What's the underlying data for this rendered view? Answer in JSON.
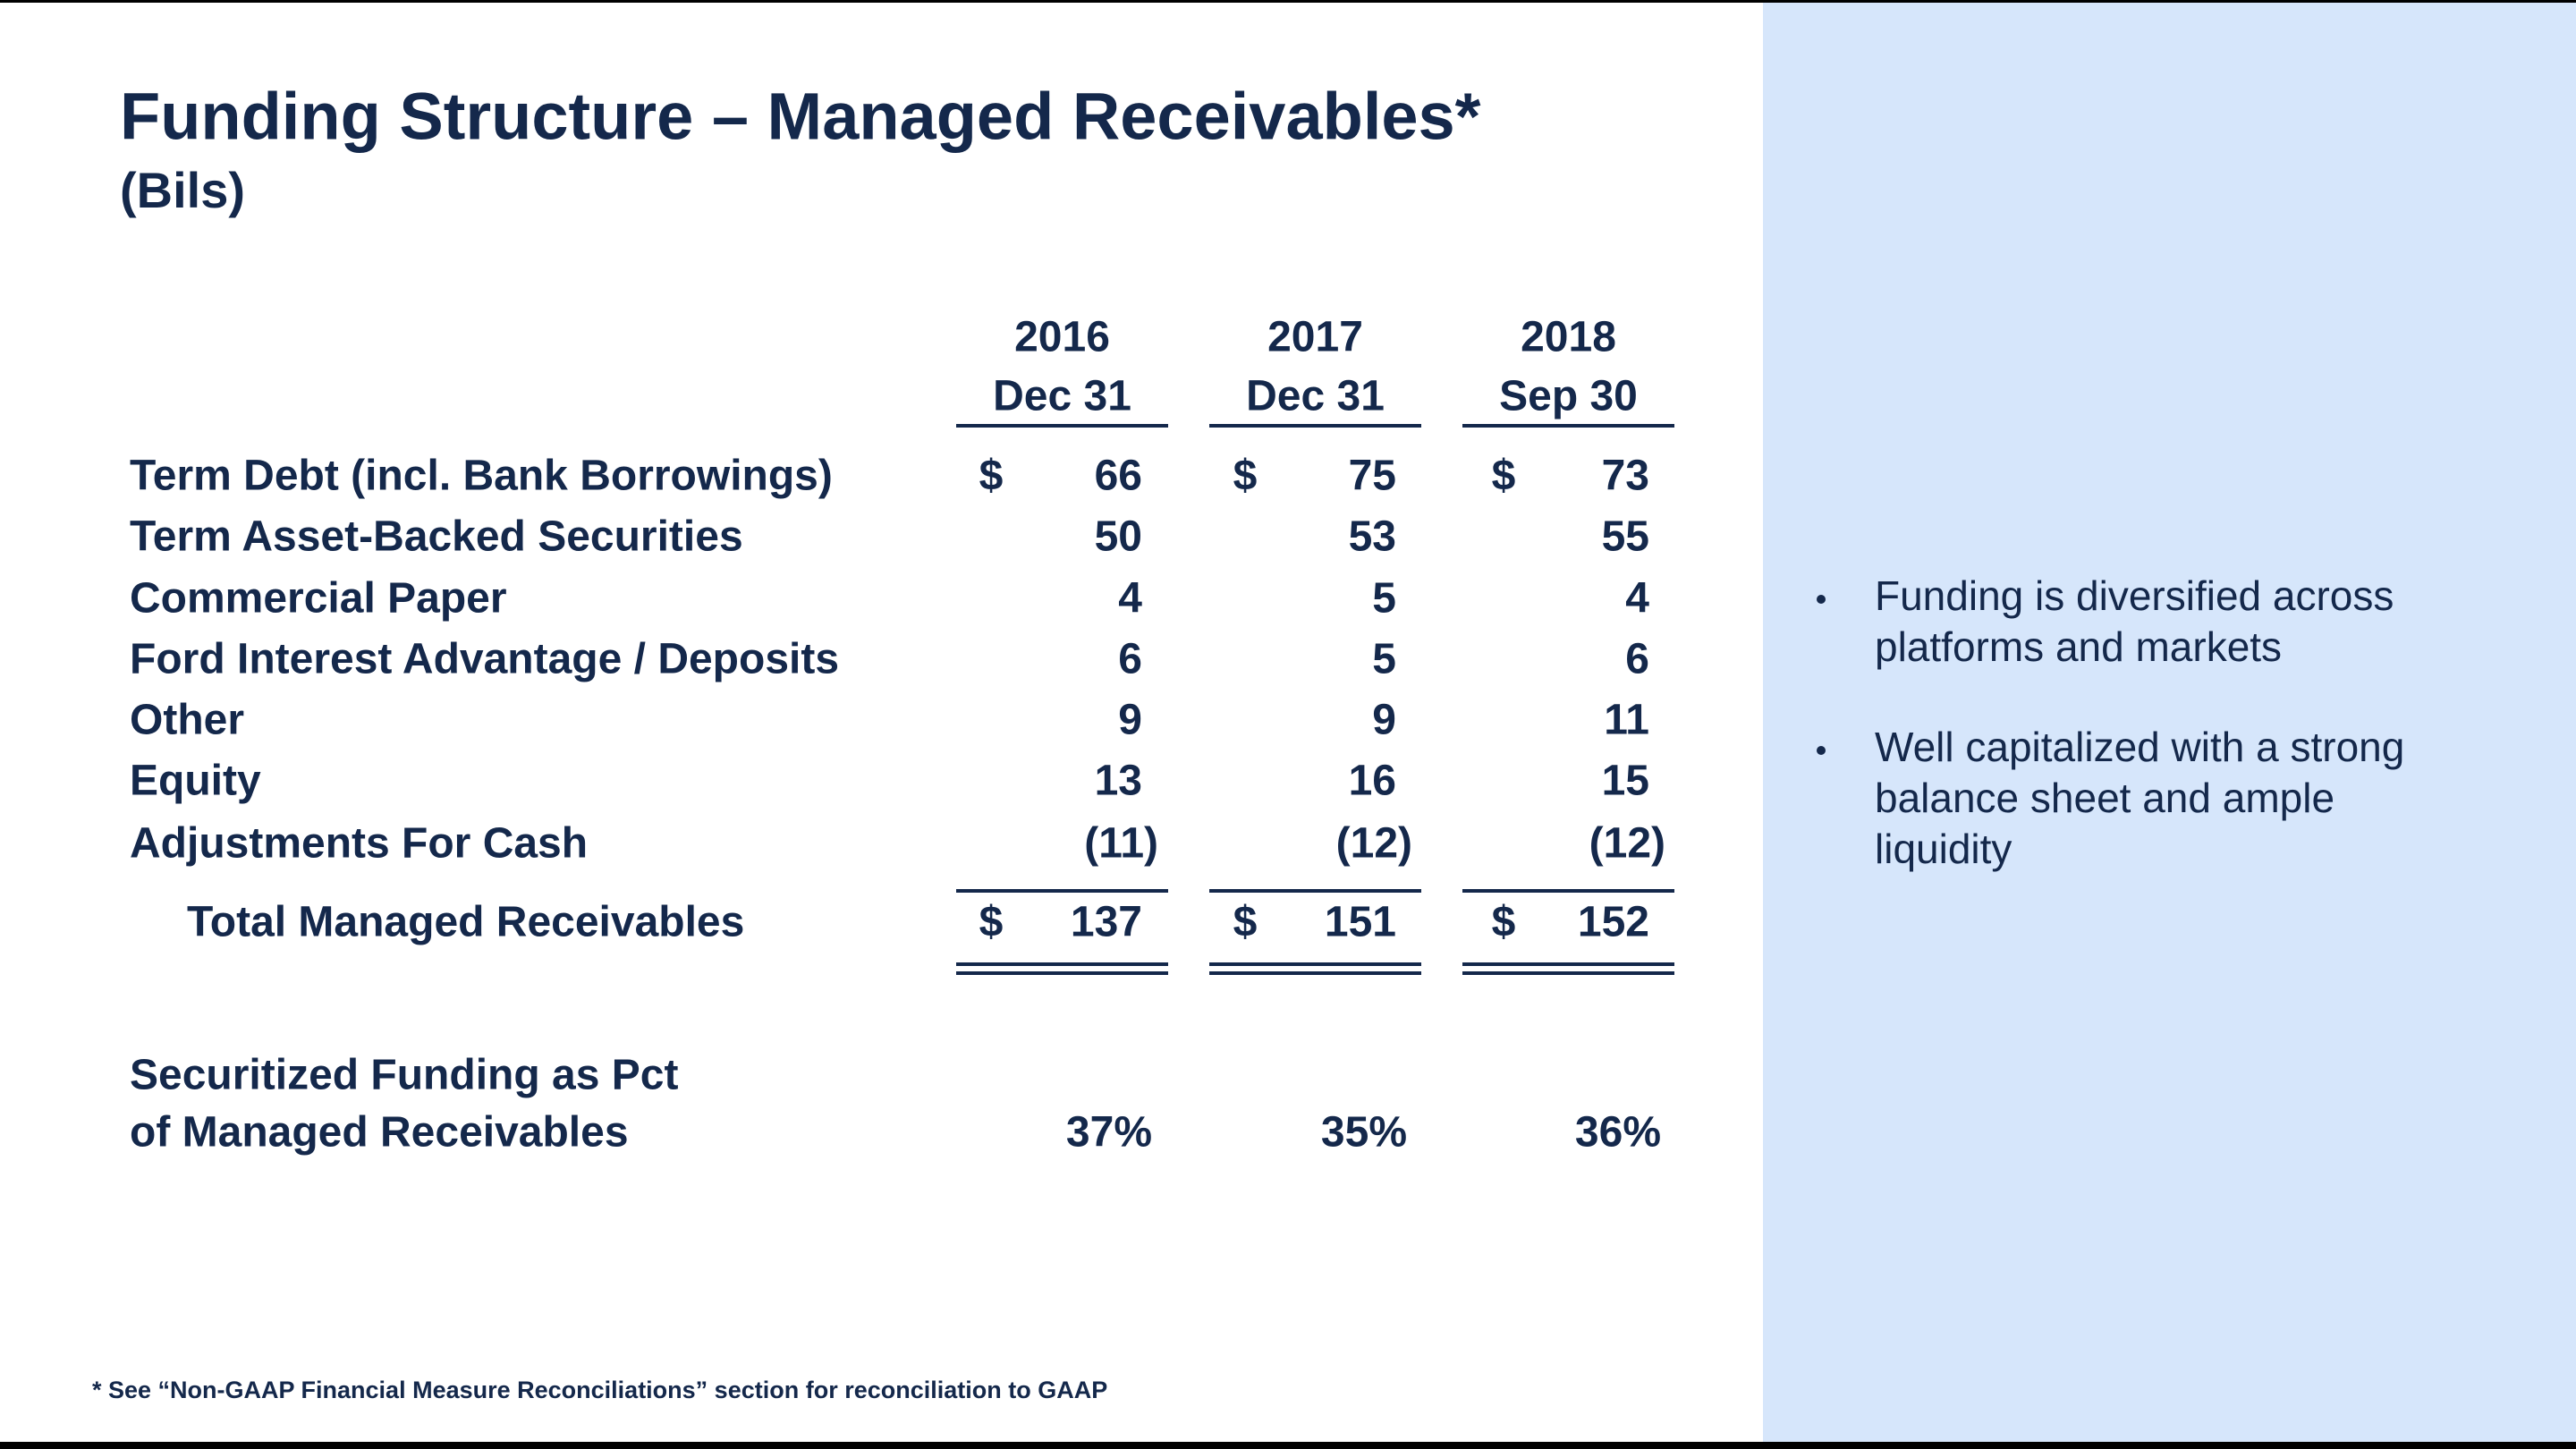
{
  "header": {
    "title": "Funding Structure – Managed Receivables*",
    "subtitle": "(Bils)"
  },
  "table": {
    "columns": [
      {
        "year": "2016",
        "date": "Dec 31"
      },
      {
        "year": "2017",
        "date": "Dec 31"
      },
      {
        "year": "2018",
        "date": "Sep 30"
      }
    ],
    "rows": [
      {
        "label": "Term Debt (incl. Bank Borrowings)",
        "cells": [
          {
            "currency": "$",
            "value": "66"
          },
          {
            "currency": "$",
            "value": "75"
          },
          {
            "currency": "$",
            "value": "73"
          }
        ]
      },
      {
        "label": "Term Asset-Backed Securities",
        "cells": [
          {
            "value": "50"
          },
          {
            "value": "53"
          },
          {
            "value": "55"
          }
        ]
      },
      {
        "label": "Commercial Paper",
        "cells": [
          {
            "value": "4"
          },
          {
            "value": "5"
          },
          {
            "value": "4"
          }
        ]
      },
      {
        "label": "Ford Interest Advantage / Deposits",
        "cells": [
          {
            "value": "6"
          },
          {
            "value": "5"
          },
          {
            "value": "6"
          }
        ]
      },
      {
        "label": "Other",
        "cells": [
          {
            "value": "9"
          },
          {
            "value": "9"
          },
          {
            "value": "11"
          }
        ]
      },
      {
        "label": "Equity",
        "cells": [
          {
            "value": "13"
          },
          {
            "value": "16"
          },
          {
            "value": "15"
          }
        ]
      },
      {
        "label": "Adjustments For Cash",
        "cells": [
          {
            "value": "(11)"
          },
          {
            "value": "(12)"
          },
          {
            "value": "(12)"
          }
        ]
      }
    ],
    "total": {
      "label": "Total Managed Receivables",
      "cells": [
        {
          "currency": "$",
          "value": "137"
        },
        {
          "currency": "$",
          "value": "151"
        },
        {
          "currency": "$",
          "value": "152"
        }
      ]
    }
  },
  "ratio": {
    "label_lines": [
      "Securitized Funding as Pct",
      "of Managed Receivables"
    ],
    "values": [
      "37%",
      "35%",
      "36%"
    ]
  },
  "bullets": [
    {
      "lines": [
        "Funding is diversified across",
        "platforms and markets"
      ]
    },
    {
      "lines": [
        "Well capitalized with a strong",
        "balance sheet and ample",
        "liquidity"
      ]
    }
  ],
  "footnote": "* See “Non-GAAP Financial Measure Reconciliations” section for reconciliation to GAAP"
}
